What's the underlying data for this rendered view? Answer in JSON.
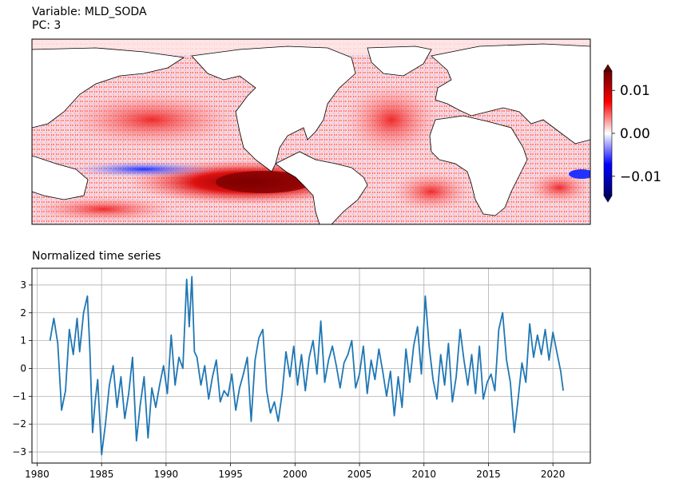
{
  "header": {
    "variable_line": "Variable: MLD_SODA",
    "pc_line": "PC: 3"
  },
  "colorbar": {
    "ticks": [
      {
        "value": 0.01,
        "label": "0.01"
      },
      {
        "value": 0.0,
        "label": "0.00"
      },
      {
        "value": -0.01,
        "label": "−0.01"
      }
    ],
    "range": [
      -0.0145,
      0.0145
    ],
    "colors": {
      "low": "#00006a",
      "mid_low": "#0000ff",
      "mid": "#ffffff",
      "mid_high": "#ff0000",
      "high": "#6a0000"
    }
  },
  "colors": {
    "line": "#1f77b4",
    "grid": "#b0b0b0",
    "land": "#ffffff",
    "coast": "#000000"
  },
  "chart_data": {
    "type": "line",
    "title": "Normalized time series",
    "xlabel": "",
    "ylabel": "",
    "xlim": [
      1979.6,
      2022.9
    ],
    "ylim": [
      -3.4,
      3.6
    ],
    "xticks": [
      1980,
      1985,
      1990,
      1995,
      2000,
      2005,
      2010,
      2015,
      2020
    ],
    "xtick_labels": [
      "1980",
      "1985",
      "1990",
      "1995",
      "2000",
      "2005",
      "2010",
      "2015",
      "2020"
    ],
    "yticks": [
      3,
      2,
      1,
      0,
      -1,
      -2,
      -3
    ],
    "ytick_labels": [
      "3",
      "2",
      "1",
      "0",
      "−1",
      "−2",
      "−3"
    ],
    "grid": true,
    "series": [
      {
        "name": "PC3",
        "x": [
          1981.0,
          1981.3,
          1981.6,
          1981.9,
          1982.2,
          1982.5,
          1982.8,
          1983.1,
          1983.3,
          1983.6,
          1983.9,
          1984.1,
          1984.3,
          1984.5,
          1984.7,
          1985.0,
          1985.3,
          1985.6,
          1985.9,
          1986.2,
          1986.5,
          1986.8,
          1987.1,
          1987.4,
          1987.7,
          1988.0,
          1988.3,
          1988.6,
          1988.9,
          1989.2,
          1989.5,
          1989.8,
          1990.1,
          1990.4,
          1990.7,
          1991.0,
          1991.3,
          1991.6,
          1991.8,
          1992.0,
          1992.2,
          1992.4,
          1992.7,
          1993.0,
          1993.3,
          1993.6,
          1993.9,
          1994.2,
          1994.5,
          1994.8,
          1995.1,
          1995.4,
          1995.7,
          1996.0,
          1996.3,
          1996.6,
          1996.9,
          1997.2,
          1997.5,
          1997.8,
          1998.1,
          1998.4,
          1998.7,
          1999.0,
          1999.3,
          1999.6,
          1999.9,
          2000.2,
          2000.5,
          2000.8,
          2001.1,
          2001.4,
          2001.7,
          2002.0,
          2002.3,
          2002.6,
          2002.9,
          2003.2,
          2003.5,
          2003.8,
          2004.1,
          2004.4,
          2004.7,
          2005.0,
          2005.3,
          2005.6,
          2005.9,
          2006.2,
          2006.5,
          2006.8,
          2007.1,
          2007.4,
          2007.7,
          2008.0,
          2008.3,
          2008.6,
          2008.9,
          2009.2,
          2009.5,
          2009.8,
          2010.1,
          2010.4,
          2010.7,
          2011.0,
          2011.3,
          2011.6,
          2011.9,
          2012.2,
          2012.5,
          2012.8,
          2013.1,
          2013.4,
          2013.7,
          2014.0,
          2014.3,
          2014.6,
          2014.9,
          2015.2,
          2015.5,
          2015.8,
          2016.1,
          2016.4,
          2016.7,
          2017.0,
          2017.3,
          2017.6,
          2017.9,
          2018.2,
          2018.5,
          2018.8,
          2019.1,
          2019.4,
          2019.7,
          2020.0,
          2020.3,
          2020.6,
          2020.8
        ],
        "values": [
          1.0,
          1.8,
          0.9,
          -1.5,
          -0.8,
          1.4,
          0.5,
          1.8,
          0.6,
          2.0,
          2.6,
          0.6,
          -2.3,
          -1.2,
          -0.4,
          -3.1,
          -2.0,
          -0.6,
          0.1,
          -1.4,
          -0.3,
          -1.8,
          -0.9,
          0.4,
          -2.6,
          -1.3,
          -0.3,
          -2.5,
          -0.7,
          -1.4,
          -0.6,
          0.1,
          -0.9,
          1.2,
          -0.6,
          0.4,
          0.0,
          3.2,
          1.5,
          3.3,
          0.6,
          0.4,
          -0.6,
          0.1,
          -1.1,
          -0.3,
          0.3,
          -1.2,
          -0.8,
          -1.0,
          -0.2,
          -1.5,
          -0.7,
          -0.2,
          0.4,
          -1.9,
          0.3,
          1.1,
          1.4,
          -0.8,
          -1.6,
          -1.2,
          -1.9,
          -0.9,
          0.6,
          -0.3,
          0.8,
          -0.6,
          0.5,
          -0.8,
          0.4,
          1.0,
          -0.2,
          1.7,
          -0.5,
          0.3,
          0.8,
          0.1,
          -0.7,
          0.2,
          0.5,
          1.0,
          -0.7,
          -0.2,
          0.8,
          -0.9,
          0.3,
          -0.4,
          0.7,
          -0.1,
          -1.0,
          -0.1,
          -1.7,
          -0.3,
          -1.4,
          0.7,
          -0.5,
          0.8,
          1.5,
          -0.2,
          2.6,
          0.8,
          -0.4,
          -1.1,
          0.5,
          -0.6,
          0.9,
          -1.2,
          -0.3,
          1.4,
          0.3,
          -0.6,
          0.5,
          -0.9,
          0.8,
          -1.1,
          -0.5,
          -0.2,
          -0.8,
          1.4,
          2.0,
          0.3,
          -0.5,
          -2.3,
          -1.1,
          0.2,
          -0.5,
          1.6,
          0.4,
          1.2,
          0.5,
          1.4,
          0.3,
          1.3,
          0.6,
          -0.1,
          -0.8
        ]
      }
    ]
  }
}
